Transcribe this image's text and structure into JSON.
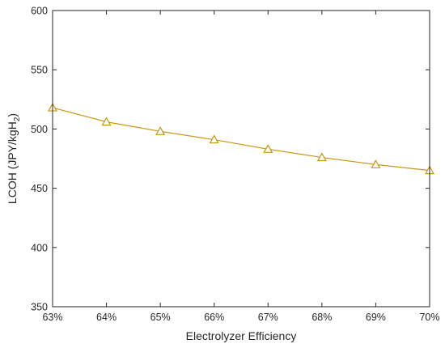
{
  "chart_data": {
    "type": "line",
    "xlabel": "Electrolyzer Efficiency",
    "ylabel": "LCOH (JPY/kgH",
    "ylabel_subscript": "2",
    "ylabel_suffix": ")",
    "ylim": [
      350,
      600
    ],
    "xlim": [
      63,
      70
    ],
    "yticks": [
      350,
      400,
      450,
      500,
      550,
      600
    ],
    "xtick_labels": [
      "63%",
      "64%",
      "65%",
      "66%",
      "67%",
      "68%",
      "69%",
      "70%"
    ],
    "grid": false,
    "series": [
      {
        "marker": "triangle",
        "color": "#c8960c",
        "x": [
          63,
          64,
          65,
          66,
          67,
          68,
          69,
          70
        ],
        "y": [
          518,
          506,
          498,
          491,
          483,
          476,
          470,
          465
        ]
      }
    ]
  }
}
